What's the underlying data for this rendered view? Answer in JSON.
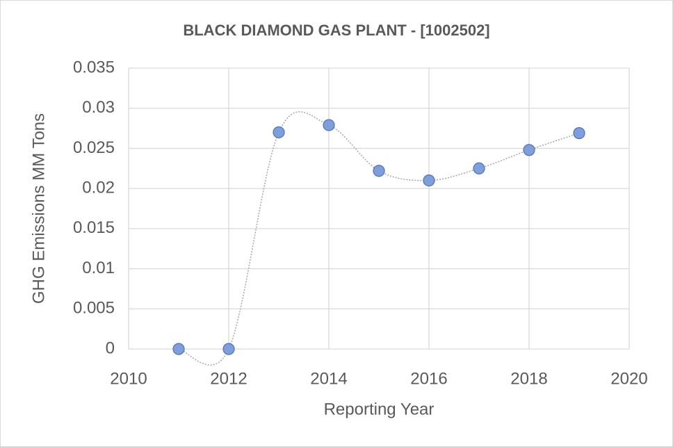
{
  "chart_data": {
    "type": "scatter",
    "title": "BLACK DIAMOND GAS PLANT - [1002502]",
    "x_label": "Reporting Year",
    "y_label": "GHG Emissions MM Tons",
    "x": [
      2011,
      2012,
      2013,
      2014,
      2015,
      2016,
      2017,
      2018,
      2019
    ],
    "values": [
      0,
      0,
      0.027,
      0.0279,
      0.0222,
      0.021,
      0.0225,
      0.0248,
      0.0269
    ],
    "color": "#7e9fdc",
    "line_color": "#a6a6a6",
    "smooth_line": true,
    "xlim": [
      2010,
      2020
    ],
    "xticks": [
      2010,
      2012,
      2014,
      2016,
      2018,
      2020
    ],
    "ylim": [
      0,
      0.035
    ],
    "yticks": [
      0,
      0.005,
      0.01,
      0.015,
      0.02,
      0.025,
      0.03,
      0.035
    ],
    "grid": true
  }
}
